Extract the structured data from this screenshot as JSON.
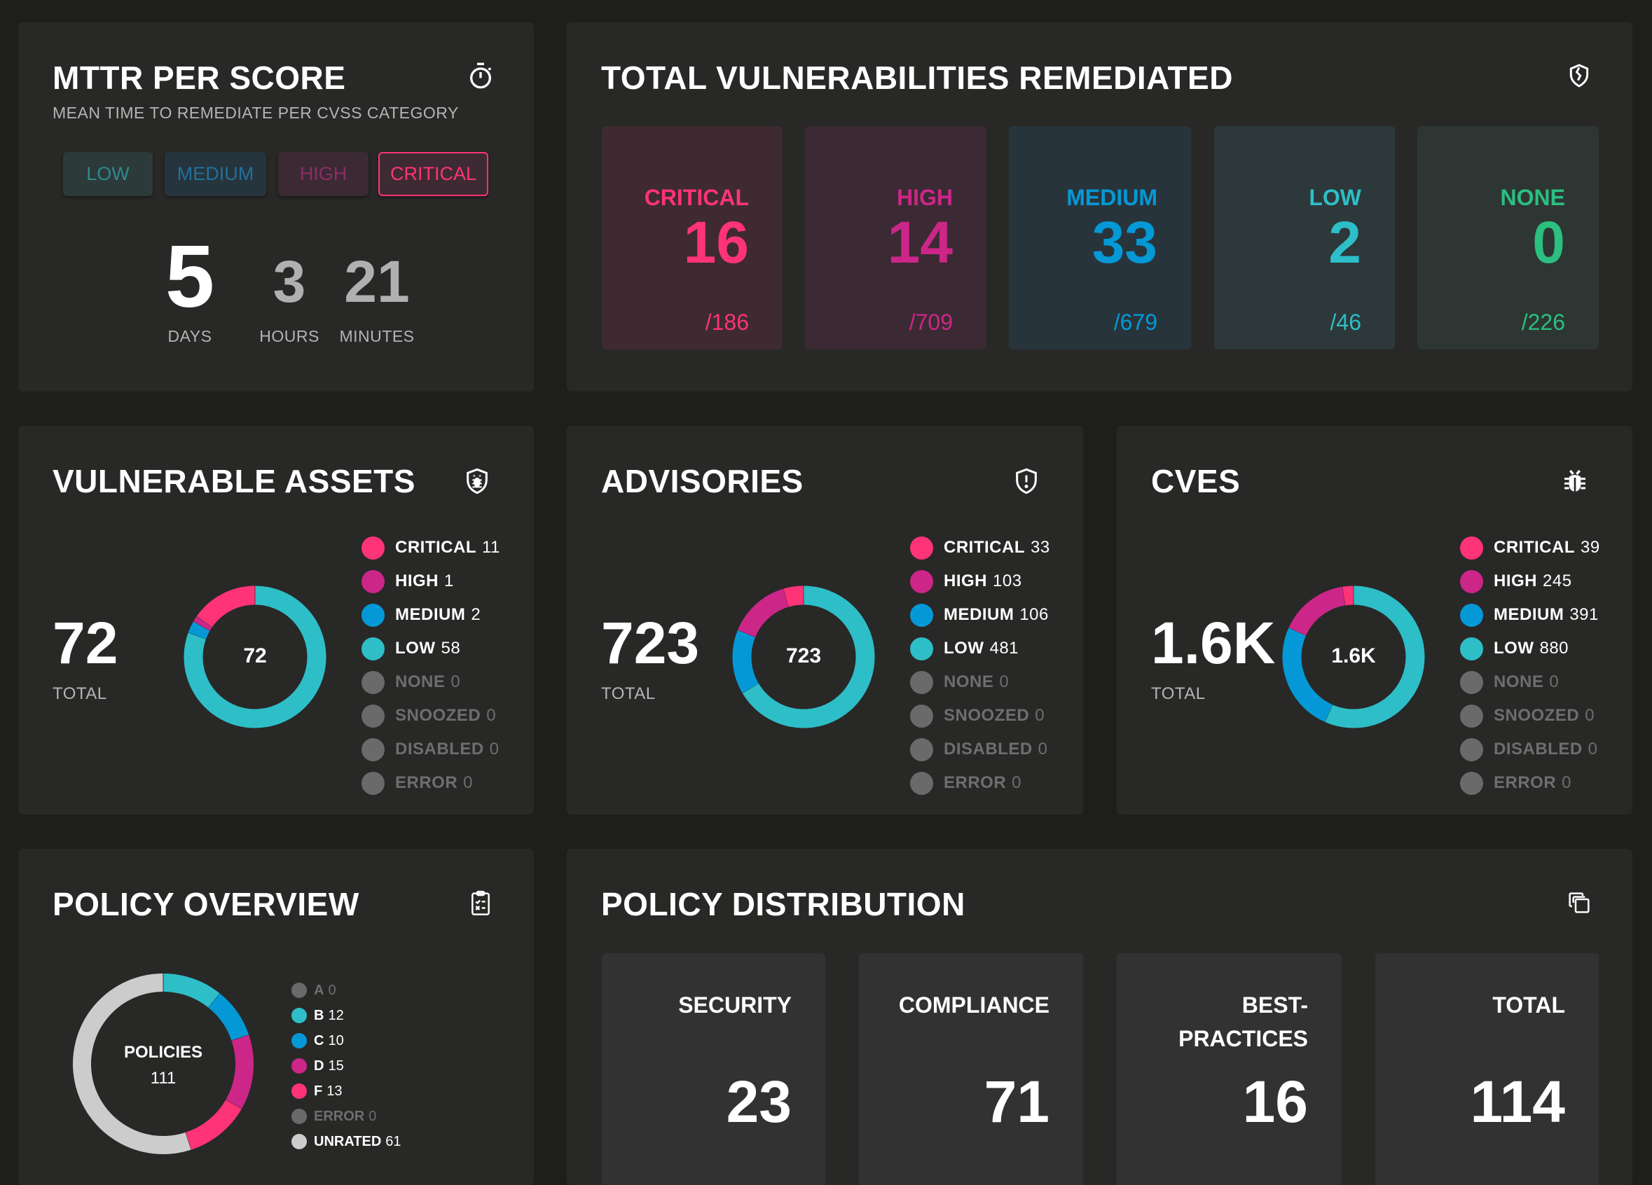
{
  "colors": {
    "critical": "#ff3377",
    "high": "#cc2688",
    "medium": "#0499d6",
    "low": "#2ebec8",
    "none": "#2bbf80",
    "muted": "#6a6a6a",
    "unrated": "#cccccc"
  },
  "mttr": {
    "title": "MTTR PER SCORE",
    "subtitle": "MEAN TIME TO REMEDIATE PER CVSS CATEGORY",
    "icon": "stopwatch-icon",
    "buttons": [
      {
        "label": "LOW"
      },
      {
        "label": "MEDIUM"
      },
      {
        "label": "HIGH"
      },
      {
        "label": "CRITICAL",
        "selected": true
      }
    ],
    "days": "5",
    "hours": "3",
    "minutes": "21",
    "days_label": "DAYS",
    "hours_label": "HOURS",
    "minutes_label": "MINUTES"
  },
  "remediated": {
    "title": "TOTAL VULNERABILITIES REMEDIATED",
    "icon": "broken-shield-icon",
    "items": [
      {
        "label": "CRITICAL",
        "value": "16",
        "total": "/186"
      },
      {
        "label": "HIGH",
        "value": "14",
        "total": "/709"
      },
      {
        "label": "MEDIUM",
        "value": "33",
        "total": "/679"
      },
      {
        "label": "LOW",
        "value": "2",
        "total": "/46"
      },
      {
        "label": "NONE",
        "value": "0",
        "total": "/226"
      }
    ]
  },
  "assets": {
    "title": "VULNERABLE ASSETS",
    "icon": "shield-bug-icon",
    "total": "72",
    "total_label": "TOTAL",
    "center": "72",
    "legend": [
      {
        "label": "CRITICAL",
        "value": 11
      },
      {
        "label": "HIGH",
        "value": 1
      },
      {
        "label": "MEDIUM",
        "value": 2
      },
      {
        "label": "LOW",
        "value": 58
      },
      {
        "label": "NONE",
        "value": 0
      },
      {
        "label": "SNOOZED",
        "value": 0
      },
      {
        "label": "DISABLED",
        "value": 0
      },
      {
        "label": "ERROR",
        "value": 0
      }
    ]
  },
  "advisories": {
    "title": "ADVISORIES",
    "icon": "shield-alert-icon",
    "total": "723",
    "total_label": "TOTAL",
    "center": "723",
    "legend": [
      {
        "label": "CRITICAL",
        "value": 33
      },
      {
        "label": "HIGH",
        "value": 103
      },
      {
        "label": "MEDIUM",
        "value": 106
      },
      {
        "label": "LOW",
        "value": 481
      },
      {
        "label": "NONE",
        "value": 0
      },
      {
        "label": "SNOOZED",
        "value": 0
      },
      {
        "label": "DISABLED",
        "value": 0
      },
      {
        "label": "ERROR",
        "value": 0
      }
    ]
  },
  "cves": {
    "title": "CVES",
    "icon": "bug-icon",
    "total": "1.6K",
    "total_label": "TOTAL",
    "center": "1.6K",
    "legend": [
      {
        "label": "CRITICAL",
        "value": 39
      },
      {
        "label": "HIGH",
        "value": 245
      },
      {
        "label": "MEDIUM",
        "value": 391
      },
      {
        "label": "LOW",
        "value": 880
      },
      {
        "label": "NONE",
        "value": 0
      },
      {
        "label": "SNOOZED",
        "value": 0
      },
      {
        "label": "DISABLED",
        "value": 0
      },
      {
        "label": "ERROR",
        "value": 0
      }
    ]
  },
  "policy_overview": {
    "title": "POLICY OVERVIEW",
    "icon": "clipboard-checklist-icon",
    "center_label": "POLICIES",
    "center_value": "111",
    "legend": [
      {
        "label": "A",
        "value": 0
      },
      {
        "label": "B",
        "value": 12
      },
      {
        "label": "C",
        "value": 10
      },
      {
        "label": "D",
        "value": 15
      },
      {
        "label": "F",
        "value": 13
      },
      {
        "label": "ERROR",
        "value": 0
      },
      {
        "label": "UNRATED",
        "value": 61
      }
    ]
  },
  "policy_distribution": {
    "title": "POLICY DISTRIBUTION",
    "icon": "copy-icon",
    "items": [
      {
        "label": "SECURITY",
        "value": "23"
      },
      {
        "label": "COMPLIANCE",
        "value": "71"
      },
      {
        "label": "BEST-\nPRACTICES",
        "value": "16"
      },
      {
        "label": "TOTAL",
        "value": "114"
      }
    ]
  }
}
